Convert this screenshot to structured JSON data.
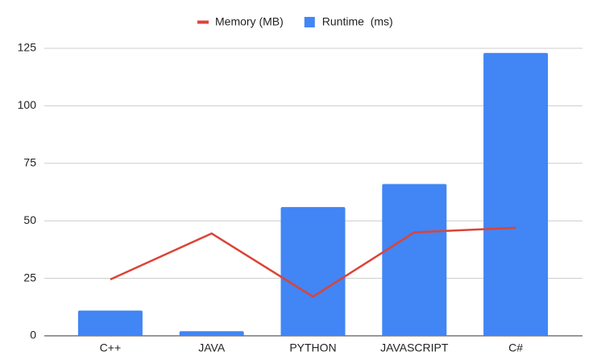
{
  "chart_data": {
    "type": "combo",
    "categories": [
      "C++",
      "JAVA",
      "PYTHON",
      "JAVASCRIPT",
      "C#"
    ],
    "series": [
      {
        "name": "Memory (MB)",
        "type": "line",
        "color": "#db4437",
        "values": [
          24.5,
          44.5,
          17,
          45,
          47
        ]
      },
      {
        "name": "Runtime  (ms)",
        "type": "bar",
        "color": "#4285f4",
        "values": [
          11,
          2,
          56,
          66,
          123
        ]
      }
    ],
    "ylim": [
      0,
      125
    ],
    "yticks": [
      0,
      25,
      50,
      75,
      100,
      125
    ],
    "grid": true,
    "legend": "top"
  }
}
